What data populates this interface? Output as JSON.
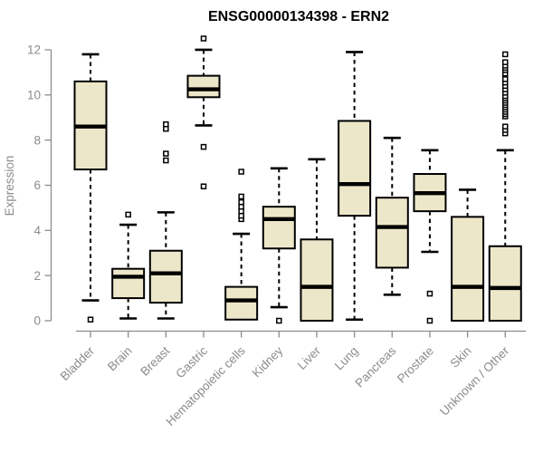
{
  "chart_data": {
    "type": "boxplot",
    "title": "ENSG00000134398 - ERN2",
    "ylabel": "Expression",
    "xlabel": "",
    "ylim": [
      0,
      12
    ],
    "yticks": [
      0,
      2,
      4,
      6,
      8,
      10,
      12
    ],
    "grid": false,
    "legend": "none",
    "colors": {
      "box_fill": "#ede7c9",
      "box_border": "#000000",
      "median": "#000000",
      "axis": "#8c8c8c",
      "tick_label": "#8c8c8c",
      "outlier_fill": "#ffffff",
      "title": "#000000",
      "background": "#ffffff"
    },
    "categories": [
      "Bladder",
      "Brain",
      "Breast",
      "Gastric",
      "Hematopoietic cells",
      "Kidney",
      "Liver",
      "Lung",
      "Pancreas",
      "Prostate",
      "Skin",
      "Unknown / Other"
    ],
    "boxes": [
      {
        "category": "Bladder",
        "whisker_low": 0.9,
        "q1": 6.7,
        "median": 8.6,
        "q3": 10.6,
        "whisker_high": 11.8,
        "outliers": [
          0.05
        ]
      },
      {
        "category": "Brain",
        "whisker_low": 0.1,
        "q1": 1.0,
        "median": 1.95,
        "q3": 2.3,
        "whisker_high": 4.25,
        "outliers": [
          4.7
        ]
      },
      {
        "category": "Breast",
        "whisker_low": 0.1,
        "q1": 0.8,
        "median": 2.1,
        "q3": 3.1,
        "whisker_high": 4.8,
        "outliers": [
          7.1,
          7.4,
          8.5,
          8.7
        ]
      },
      {
        "category": "Gastric",
        "whisker_low": 8.65,
        "q1": 9.9,
        "median": 10.25,
        "q3": 10.85,
        "whisker_high": 12.0,
        "outliers": [
          5.95,
          7.7,
          12.5
        ]
      },
      {
        "category": "Hematopoietic cells",
        "whisker_low": 0.05,
        "q1": 0.05,
        "median": 0.9,
        "q3": 1.5,
        "whisker_high": 3.85,
        "outliers": [
          4.5,
          4.65,
          4.85,
          5.05,
          5.25,
          5.5,
          6.6
        ]
      },
      {
        "category": "Kidney",
        "whisker_low": 0.6,
        "q1": 3.2,
        "median": 4.5,
        "q3": 5.05,
        "whisker_high": 6.75,
        "outliers": [
          0.0
        ]
      },
      {
        "category": "Liver",
        "whisker_low": 0.0,
        "q1": 0.0,
        "median": 1.5,
        "q3": 3.6,
        "whisker_high": 7.15,
        "outliers": []
      },
      {
        "category": "Lung",
        "whisker_low": 0.05,
        "q1": 4.65,
        "median": 6.05,
        "q3": 8.85,
        "whisker_high": 11.9,
        "outliers": []
      },
      {
        "category": "Pancreas",
        "whisker_low": 1.15,
        "q1": 2.35,
        "median": 4.15,
        "q3": 5.45,
        "whisker_high": 8.1,
        "outliers": []
      },
      {
        "category": "Prostate",
        "whisker_low": 3.05,
        "q1": 4.85,
        "median": 5.65,
        "q3": 6.5,
        "whisker_high": 7.55,
        "outliers": [
          0.0,
          1.2
        ]
      },
      {
        "category": "Skin",
        "whisker_low": 0.0,
        "q1": 0.0,
        "median": 1.5,
        "q3": 4.6,
        "whisker_high": 5.8,
        "outliers": []
      },
      {
        "category": "Unknown / Other",
        "whisker_low": 0.0,
        "q1": 0.0,
        "median": 1.45,
        "q3": 3.3,
        "whisker_high": 7.55,
        "outliers": [
          8.3,
          8.45,
          8.6,
          9.05,
          9.15,
          9.25,
          9.35,
          9.45,
          9.55,
          9.65,
          9.75,
          9.85,
          9.95,
          10.1,
          10.25,
          10.4,
          10.55,
          10.7,
          10.95,
          11.1,
          11.2,
          11.3,
          11.45,
          11.8
        ]
      }
    ]
  }
}
